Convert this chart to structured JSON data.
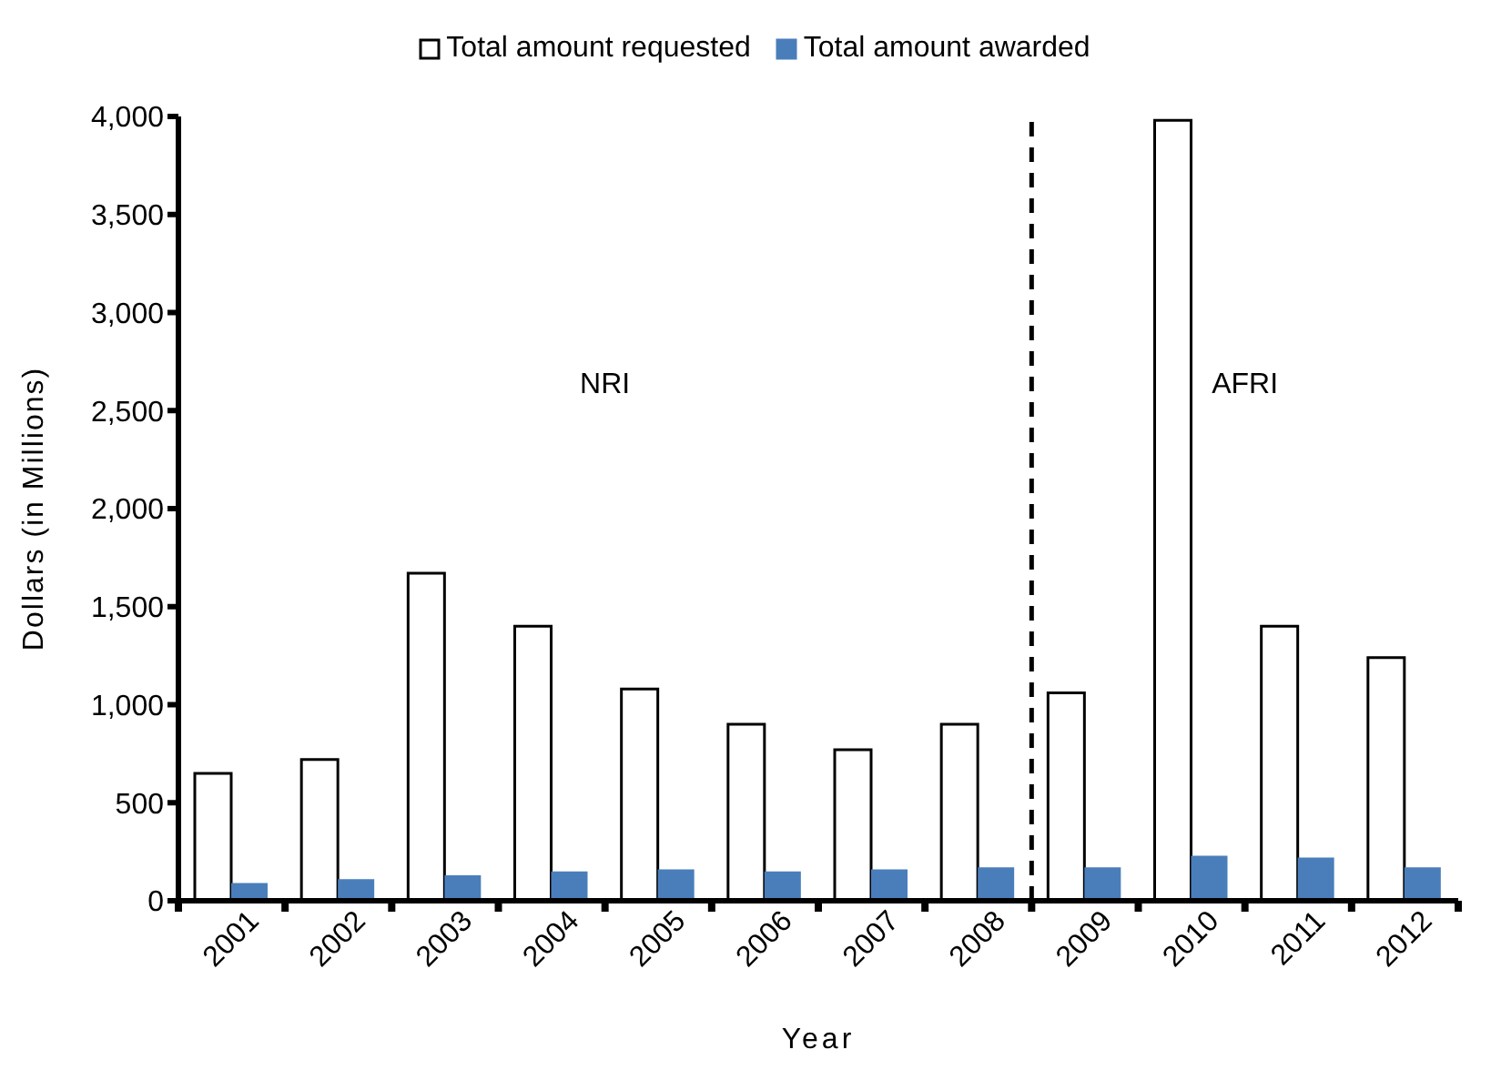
{
  "chart_data": {
    "type": "bar",
    "xlabel": "Year",
    "ylabel": "Dollars (in Millions)",
    "x": [
      2001,
      2002,
      2003,
      2004,
      2005,
      2006,
      2007,
      2008,
      2009,
      2010,
      2011,
      2012
    ],
    "xlim": [
      2000.5,
      2012.5
    ],
    "xticks": [
      2001,
      2002,
      2003,
      2004,
      2005,
      2006,
      2007,
      2008,
      2009,
      2010,
      2011,
      2012
    ],
    "series": [
      {
        "name": "Total amount requested",
        "color": "#ffffff",
        "values": [
          650,
          720,
          1670,
          1400,
          1080,
          900,
          770,
          900,
          1060,
          3980,
          1400,
          1240
        ]
      },
      {
        "name": "Total amount awarded",
        "color": "#4a7ebb",
        "values": [
          90,
          110,
          130,
          150,
          160,
          150,
          160,
          170,
          170,
          230,
          220,
          170
        ]
      }
    ],
    "ylim": [
      0,
      4000
    ],
    "yticks": [
      0,
      500,
      {
        "value": 1000,
        "label": "1,000"
      },
      {
        "value": 1500,
        "label": "1,500"
      },
      {
        "value": 2000,
        "label": "2,000"
      },
      {
        "value": 2500,
        "label": "2,500"
      },
      {
        "value": 3000,
        "label": "3,000"
      },
      {
        "value": 3500,
        "label": "3,500"
      },
      {
        "value": 4000,
        "label": "4,000"
      }
    ],
    "grid": false,
    "legend": "top",
    "ref_lines": [
      {
        "axis": "x",
        "value": 2008.5,
        "color": "#000000",
        "line_style": "dashed"
      }
    ],
    "annotations": [
      "NRI",
      "AFRI"
    ]
  }
}
